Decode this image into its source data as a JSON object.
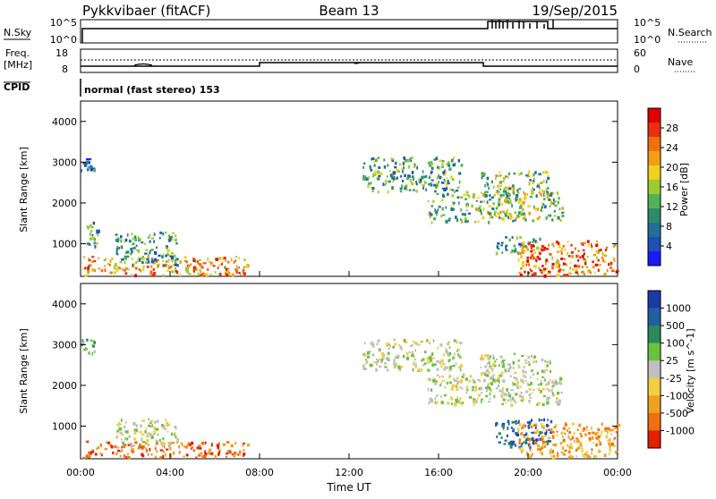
{
  "header": {
    "station": "Pykkvibaer (fitACF)",
    "beam": "Beam 13",
    "date": "19/Sep/2015"
  },
  "top_panels": {
    "nsky": {
      "label": "N.Sky",
      "tick_top": "10^5",
      "tick_bottom": "10^0"
    },
    "nsearch": {
      "label": "N.Search",
      "tick_top": "10^5",
      "tick_bottom": "10^0"
    },
    "freq": {
      "label_line1": "Freq.",
      "label_line2": "[MHz]",
      "tick_top": "18",
      "tick_bottom": "8"
    },
    "nave": {
      "label": "Nave",
      "tick_top": "60",
      "tick_bottom": "0"
    },
    "cpid": {
      "label": "CPID",
      "text": "normal (fast stereo) 153"
    }
  },
  "chart_data": [
    {
      "type": "heatmap",
      "title": "",
      "ylabel": "Slant Range [km]",
      "xlabel": "",
      "x_ticks": [
        "00:00",
        "04:00",
        "08:00",
        "12:00",
        "16:00",
        "20:00",
        "00:00"
      ],
      "y_ticks": [
        "1000",
        "2000",
        "3000",
        "4000"
      ],
      "ylim": [
        200,
        4500
      ],
      "colorbar": {
        "label": "Power [dB]",
        "ticks": [
          "4",
          "8",
          "12",
          "16",
          "20",
          "24",
          "28"
        ],
        "colors": [
          "#1a1aff",
          "#1f4fb4",
          "#22709a",
          "#2f8a6a",
          "#52b25a",
          "#9ccc30",
          "#f0d020",
          "#f0a010",
          "#f07010",
          "#e83010",
          "#e00000"
        ]
      },
      "regions": [
        {
          "t0": 0.0,
          "t1": 0.6,
          "r0": 2800,
          "r1": 3150,
          "level": 0.2
        },
        {
          "t0": 0.1,
          "t1": 7.5,
          "r0": 250,
          "r1": 700,
          "level": 0.7
        },
        {
          "t0": 1.5,
          "t1": 4.3,
          "r0": 500,
          "r1": 1300,
          "level": 0.35
        },
        {
          "t0": 0.2,
          "t1": 0.8,
          "r0": 900,
          "r1": 1600,
          "level": 0.3
        },
        {
          "t0": 12.6,
          "t1": 17.0,
          "r0": 2300,
          "r1": 3150,
          "level": 0.35
        },
        {
          "t0": 17.8,
          "t1": 21.0,
          "r0": 2200,
          "r1": 2800,
          "level": 0.45
        },
        {
          "t0": 15.5,
          "t1": 21.5,
          "r0": 1550,
          "r1": 2300,
          "level": 0.45
        },
        {
          "t0": 18.5,
          "t1": 20.5,
          "r0": 800,
          "r1": 1200,
          "level": 0.3
        },
        {
          "t0": 19.5,
          "t1": 24.0,
          "r0": 250,
          "r1": 1100,
          "level": 0.75
        }
      ]
    },
    {
      "type": "heatmap",
      "title": "",
      "ylabel": "Slant Range [km]",
      "xlabel": "Time UT",
      "x_ticks": [
        "00:00",
        "04:00",
        "08:00",
        "12:00",
        "16:00",
        "20:00",
        "00:00"
      ],
      "y_ticks": [
        "1000",
        "2000",
        "3000",
        "4000"
      ],
      "ylim": [
        200,
        4500
      ],
      "colorbar": {
        "label": "Velocity [m s^-1]",
        "ticks": [
          "1000",
          "500",
          "100",
          "25",
          "-25",
          "-100",
          "-500",
          "-1000"
        ],
        "colors": [
          "#1a3aa8",
          "#2060a0",
          "#2a8a5a",
          "#6cc040",
          "#c0c0c0",
          "#f0d040",
          "#f0a020",
          "#f07010",
          "#e02000"
        ]
      },
      "regions": [
        {
          "t0": 0.0,
          "t1": 0.6,
          "r0": 2800,
          "r1": 3150,
          "level": 0.4
        },
        {
          "t0": 0.1,
          "t1": 7.5,
          "r0": 250,
          "r1": 650,
          "level": 0.8
        },
        {
          "t0": 1.5,
          "t1": 4.3,
          "r0": 500,
          "r1": 1200,
          "level": 0.45
        },
        {
          "t0": 12.6,
          "t1": 17.0,
          "r0": 2400,
          "r1": 3150,
          "level": 0.45
        },
        {
          "t0": 17.8,
          "t1": 21.0,
          "r0": 2300,
          "r1": 2800,
          "level": 0.45
        },
        {
          "t0": 15.5,
          "t1": 21.5,
          "r0": 1550,
          "r1": 2300,
          "level": 0.45
        },
        {
          "t0": 18.5,
          "t1": 21.0,
          "r0": 500,
          "r1": 1200,
          "level": 0.2
        },
        {
          "t0": 19.5,
          "t1": 24.0,
          "r0": 250,
          "r1": 1100,
          "level": 0.75
        }
      ]
    }
  ]
}
